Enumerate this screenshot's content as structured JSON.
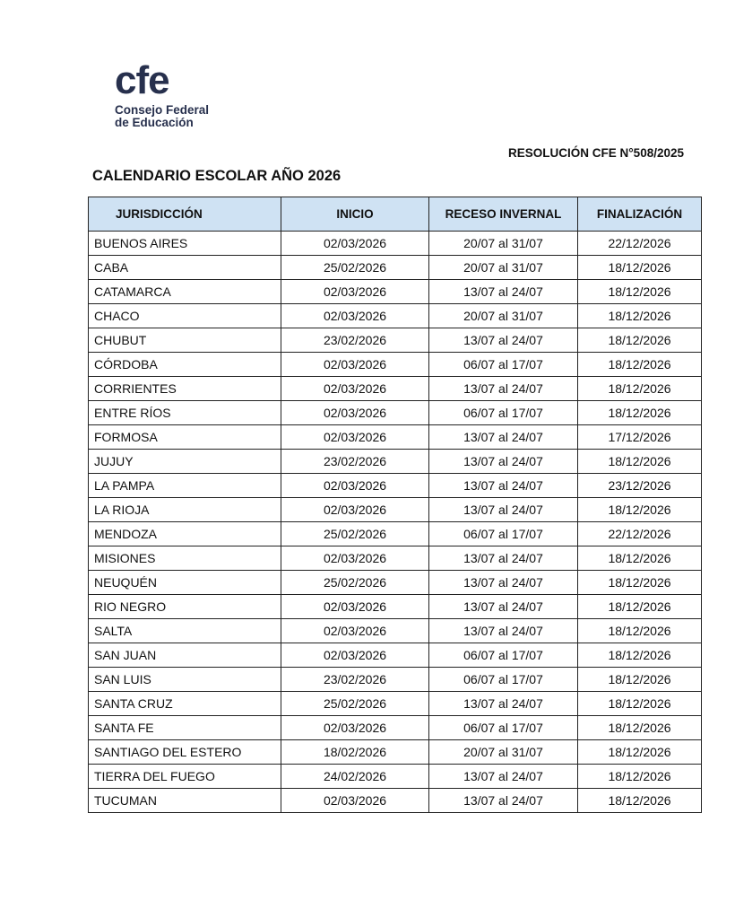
{
  "logo": {
    "mark": "cfe",
    "line1": "Consejo Federal",
    "line2": "de Educación"
  },
  "resolution": "RESOLUCIÓN CFE N°508/2025",
  "title": "CALENDARIO ESCOLAR AÑO 2026",
  "table": {
    "headers": [
      "JURISDICCIÓN",
      "INICIO",
      "RECESO INVERNAL",
      "FINALIZACIÓN"
    ],
    "rows": [
      [
        "BUENOS AIRES",
        "02/03/2026",
        "20/07 al 31/07",
        "22/12/2026"
      ],
      [
        "CABA",
        "25/02/2026",
        "20/07 al 31/07",
        "18/12/2026"
      ],
      [
        "CATAMARCA",
        "02/03/2026",
        "13/07 al 24/07",
        "18/12/2026"
      ],
      [
        "CHACO",
        "02/03/2026",
        "20/07 al 31/07",
        "18/12/2026"
      ],
      [
        "CHUBUT",
        "23/02/2026",
        "13/07 al 24/07",
        "18/12/2026"
      ],
      [
        "CÓRDOBA",
        "02/03/2026",
        "06/07 al 17/07",
        "18/12/2026"
      ],
      [
        "CORRIENTES",
        "02/03/2026",
        "13/07 al 24/07",
        "18/12/2026"
      ],
      [
        "ENTRE RÍOS",
        "02/03/2026",
        "06/07 al 17/07",
        "18/12/2026"
      ],
      [
        "FORMOSA",
        "02/03/2026",
        "13/07 al 24/07",
        "17/12/2026"
      ],
      [
        "JUJUY",
        "23/02/2026",
        "13/07 al 24/07",
        "18/12/2026"
      ],
      [
        "LA PAMPA",
        "02/03/2026",
        "13/07 al 24/07",
        "23/12/2026"
      ],
      [
        "LA RIOJA",
        "02/03/2026",
        "13/07 al 24/07",
        "18/12/2026"
      ],
      [
        "MENDOZA",
        "25/02/2026",
        "06/07 al 17/07",
        "22/12/2026"
      ],
      [
        "MISIONES",
        "02/03/2026",
        "13/07 al 24/07",
        "18/12/2026"
      ],
      [
        "NEUQUÉN",
        "25/02/2026",
        "13/07 al 24/07",
        "18/12/2026"
      ],
      [
        "RIO NEGRO",
        "02/03/2026",
        "13/07 al 24/07",
        "18/12/2026"
      ],
      [
        "SALTA",
        "02/03/2026",
        "13/07 al 24/07",
        "18/12/2026"
      ],
      [
        "SAN JUAN",
        "02/03/2026",
        "06/07 al 17/07",
        "18/12/2026"
      ],
      [
        "SAN LUIS",
        "23/02/2026",
        "06/07 al 17/07",
        "18/12/2026"
      ],
      [
        "SANTA CRUZ",
        "25/02/2026",
        "13/07 al 24/07",
        "18/12/2026"
      ],
      [
        "SANTA FE",
        "02/03/2026",
        "06/07 al 17/07",
        "18/12/2026"
      ],
      [
        "SANTIAGO DEL ESTERO",
        "18/02/2026",
        "20/07 al 31/07",
        "18/12/2026"
      ],
      [
        "TIERRA DEL FUEGO",
        "24/02/2026",
        "13/07 al 24/07",
        "18/12/2026"
      ],
      [
        "TUCUMAN",
        "02/03/2026",
        "13/07 al 24/07",
        "18/12/2026"
      ]
    ]
  },
  "colors": {
    "header_bg": "#cfe2f3",
    "logo": "#27304d"
  }
}
